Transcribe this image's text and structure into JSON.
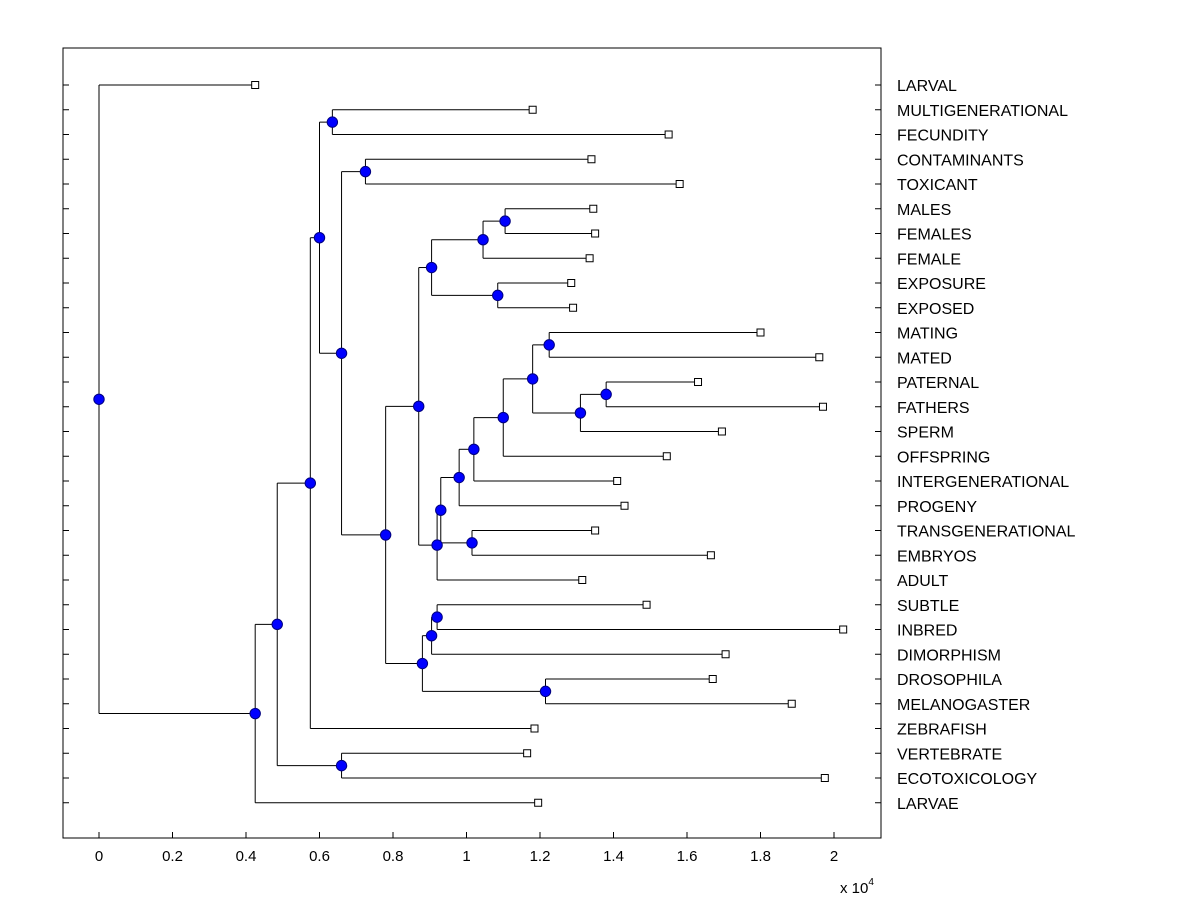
{
  "chart_data": {
    "type": "dendrogram",
    "title": "",
    "xlabel": "",
    "ylabel": "",
    "x_multiplier_label": {
      "base": "x 10",
      "exponent": "4"
    },
    "xlim": [
      -1000,
      21000
    ],
    "x_ticks": [
      0,
      2000,
      4000,
      6000,
      8000,
      10000,
      12000,
      14000,
      16000,
      18000,
      20000
    ],
    "x_tick_labels": [
      "0",
      "0.2",
      "0.4",
      "0.6",
      "0.8",
      "1",
      "1.2",
      "1.4",
      "1.6",
      "1.8",
      "2"
    ],
    "colors": {
      "node_fill": "#0000ff",
      "node_stroke": "#000080",
      "line": "#000000",
      "leaf_fill": "#ffffff"
    },
    "leaves": [
      {
        "label": "LARVAL",
        "x": 4250
      },
      {
        "label": "MULTIGENERATIONAL",
        "x": 11800
      },
      {
        "label": "FECUNDITY",
        "x": 15500
      },
      {
        "label": "CONTAMINANTS",
        "x": 13400
      },
      {
        "label": "TOXICANT",
        "x": 15800
      },
      {
        "label": "MALES",
        "x": 13450
      },
      {
        "label": "FEMALES",
        "x": 13500
      },
      {
        "label": "FEMALE",
        "x": 13350
      },
      {
        "label": "EXPOSURE",
        "x": 12850
      },
      {
        "label": "EXPOSED",
        "x": 12900
      },
      {
        "label": "MATING",
        "x": 18000
      },
      {
        "label": "MATED",
        "x": 19600
      },
      {
        "label": "PATERNAL",
        "x": 16300
      },
      {
        "label": "FATHERS",
        "x": 19700
      },
      {
        "label": "SPERM",
        "x": 16950
      },
      {
        "label": "OFFSPRING",
        "x": 15450
      },
      {
        "label": "INTERGENERATIONAL",
        "x": 14100
      },
      {
        "label": "PROGENY",
        "x": 14300
      },
      {
        "label": "TRANSGENERATIONAL",
        "x": 13500
      },
      {
        "label": "EMBRYOS",
        "x": 16650
      },
      {
        "label": "ADULT",
        "x": 13150
      },
      {
        "label": "SUBTLE",
        "x": 14900
      },
      {
        "label": "INBRED",
        "x": 20250
      },
      {
        "label": "DIMORPHISM",
        "x": 17050
      },
      {
        "label": "DROSOPHILA",
        "x": 16700
      },
      {
        "label": "MELANOGASTER",
        "x": 18850
      },
      {
        "label": "ZEBRAFISH",
        "x": 11850
      },
      {
        "label": "VERTEBRATE",
        "x": 11650
      },
      {
        "label": "ECOTOXICOLOGY",
        "x": 19750
      },
      {
        "label": "LARVAE",
        "x": 11950
      }
    ],
    "merges": [
      {
        "id": "n1",
        "x": 6350,
        "children": [
          "L1",
          "L2"
        ]
      },
      {
        "id": "n2",
        "x": 7250,
        "children": [
          "L3",
          "L4"
        ]
      },
      {
        "id": "n3",
        "x": 11050,
        "children": [
          "L5",
          "L6"
        ]
      },
      {
        "id": "n4",
        "x": 10450,
        "children": [
          "n3",
          "L7"
        ]
      },
      {
        "id": "n5",
        "x": 10850,
        "children": [
          "L8",
          "L9"
        ]
      },
      {
        "id": "n6",
        "x": 9050,
        "children": [
          "n4",
          "n5"
        ]
      },
      {
        "id": "n7",
        "x": 12250,
        "children": [
          "L10",
          "L11"
        ]
      },
      {
        "id": "n8",
        "x": 13800,
        "children": [
          "L12",
          "L13"
        ]
      },
      {
        "id": "n9",
        "x": 13100,
        "children": [
          "n8",
          "L14"
        ]
      },
      {
        "id": "n10",
        "x": 11800,
        "children": [
          "n7",
          "n9"
        ]
      },
      {
        "id": "n11",
        "x": 11000,
        "children": [
          "n10",
          "L15"
        ]
      },
      {
        "id": "n12",
        "x": 10200,
        "children": [
          "n11",
          "L16"
        ]
      },
      {
        "id": "n13",
        "x": 9800,
        "children": [
          "n12",
          "L17"
        ]
      },
      {
        "id": "n14",
        "x": 10150,
        "children": [
          "L18",
          "L19"
        ]
      },
      {
        "id": "n15",
        "x": 9300,
        "children": [
          "n13",
          "n14"
        ]
      },
      {
        "id": "n16",
        "x": 9200,
        "children": [
          "n15",
          "L20"
        ]
      },
      {
        "id": "n17",
        "x": 8700,
        "children": [
          "n6",
          "n16"
        ]
      },
      {
        "id": "n18",
        "x": 9200,
        "children": [
          "L21",
          "L22"
        ]
      },
      {
        "id": "n19",
        "x": 9050,
        "children": [
          "n18",
          "L23"
        ]
      },
      {
        "id": "n20",
        "x": 12150,
        "children": [
          "L24",
          "L25"
        ]
      },
      {
        "id": "n21",
        "x": 8800,
        "children": [
          "n19",
          "n20"
        ]
      },
      {
        "id": "n22",
        "x": 7800,
        "children": [
          "n17",
          "n21"
        ]
      },
      {
        "id": "n23",
        "x": 6600,
        "children": [
          "n2",
          "n22"
        ]
      },
      {
        "id": "n24",
        "x": 6000,
        "children": [
          "n1",
          "n23"
        ]
      },
      {
        "id": "n25",
        "x": 5750,
        "children": [
          "n24",
          "L26"
        ]
      },
      {
        "id": "n26",
        "x": 6600,
        "children": [
          "L27",
          "L28"
        ]
      },
      {
        "id": "n27",
        "x": 4850,
        "children": [
          "n25",
          "n26"
        ]
      },
      {
        "id": "n28",
        "x": 4250,
        "children": [
          "n27",
          "L29"
        ]
      },
      {
        "id": "n29",
        "x": 0,
        "children": [
          "L0",
          "n28"
        ]
      }
    ]
  }
}
